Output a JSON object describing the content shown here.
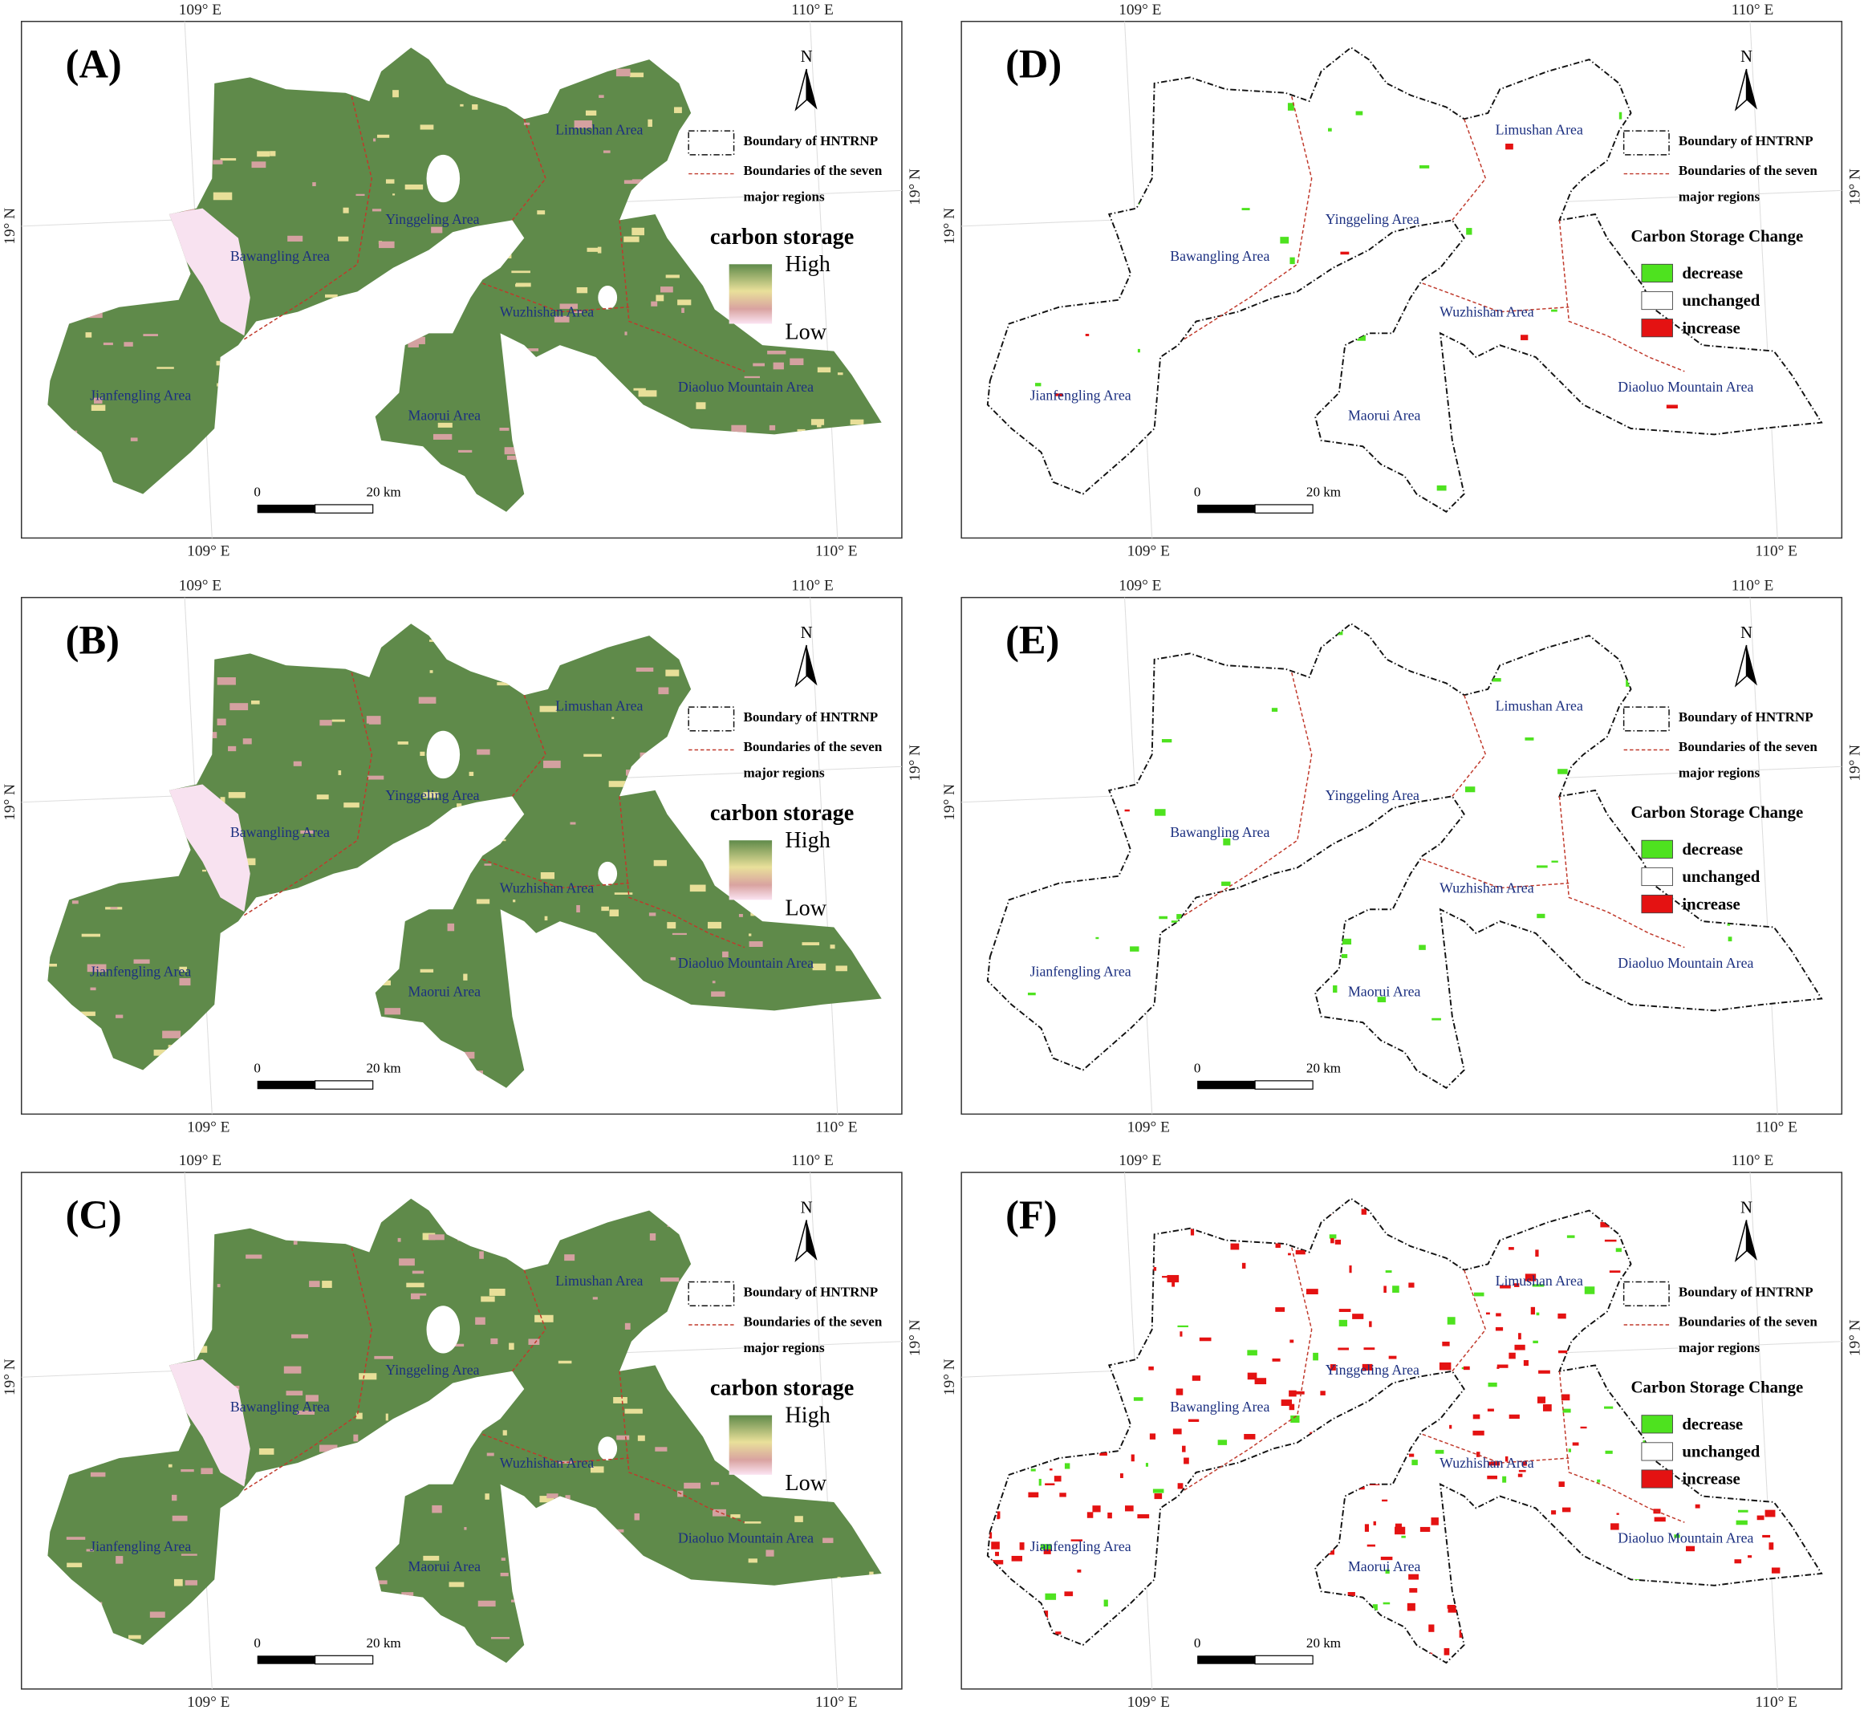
{
  "map": {
    "coordinates": {
      "lon_left": "109° E",
      "lon_right": "110° E",
      "lat": "19° N"
    },
    "north": "N",
    "legend_boundary": [
      "Boundary of HNTRNP",
      "Boundaries of the seven",
      "major regions"
    ],
    "areas": [
      "Limushan Area",
      "Yinggeling Area",
      "Bawangling Area",
      "Wuzhishan Area",
      "Diaoluo Mountain Area",
      "Jianfengling Area",
      "Maorui Area"
    ],
    "scale": [
      "0",
      "20 km"
    ]
  },
  "panels": [
    {
      "label": "(A)",
      "legend_title": "carbon storage",
      "legend_items": [
        "High",
        "Low"
      ]
    },
    {
      "label": "(B)",
      "legend_title": "carbon storage",
      "legend_items": [
        "High",
        "Low"
      ]
    },
    {
      "label": "(C)",
      "legend_title": "carbon storage",
      "legend_items": [
        "High",
        "Low"
      ]
    },
    {
      "label": "(D)",
      "legend_title": "Carbon Storage Change",
      "legend_items": [
        "decrease",
        "unchanged",
        "increase"
      ]
    },
    {
      "label": "(E)",
      "legend_title": "Carbon Storage Change",
      "legend_items": [
        "decrease",
        "unchanged",
        "increase"
      ]
    },
    {
      "label": "(F)",
      "legend_title": "Carbon Storage Change",
      "legend_items": [
        "decrease",
        "unchanged",
        "increase"
      ]
    }
  ]
}
